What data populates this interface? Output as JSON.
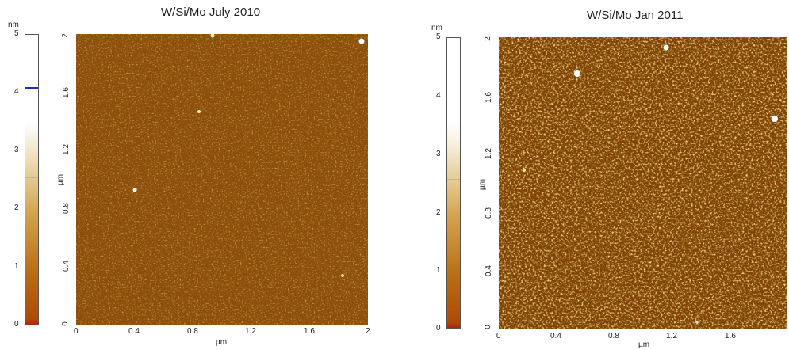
{
  "panels": [
    {
      "title": "W/Si/Mo July 2010",
      "colorbar": {
        "unit": "nm",
        "ticks": [
          "5",
          "4",
          "3",
          "2",
          "1",
          "0"
        ],
        "max": 5,
        "marker_value": 4.08,
        "white_level": 2.55
      },
      "image": {
        "y_ticks": [
          "2",
          "1.6",
          "1.2",
          "0.8",
          "0.4",
          "0"
        ],
        "x_ticks": [
          "0",
          "0.4",
          "0.8",
          "1.2",
          "1.6",
          "2"
        ],
        "xlabel": "µm",
        "ylabel": "µm",
        "colors": {
          "base": "#8a4c0a",
          "light": "#d49a3a",
          "dark": "#5a2c02"
        }
      }
    },
    {
      "title": "W/Si/Mo Jan 2011",
      "colorbar": {
        "unit": "nm",
        "ticks": [
          "5",
          "4",
          "3",
          "2",
          "1",
          "0"
        ],
        "max": 5,
        "white_level": 2.6
      },
      "image": {
        "y_ticks": [
          "2",
          "1.6",
          "1.2",
          "0.8",
          "0.4",
          "0"
        ],
        "x_ticks": [
          "0",
          "0.4",
          "0.8",
          "1.2",
          "1.6"
        ],
        "xlabel": "µm",
        "ylabel": "µm",
        "colors": {
          "base": "#7e4204",
          "light": "#e4aa48",
          "dark": "#3e1c00"
        }
      }
    }
  ]
}
